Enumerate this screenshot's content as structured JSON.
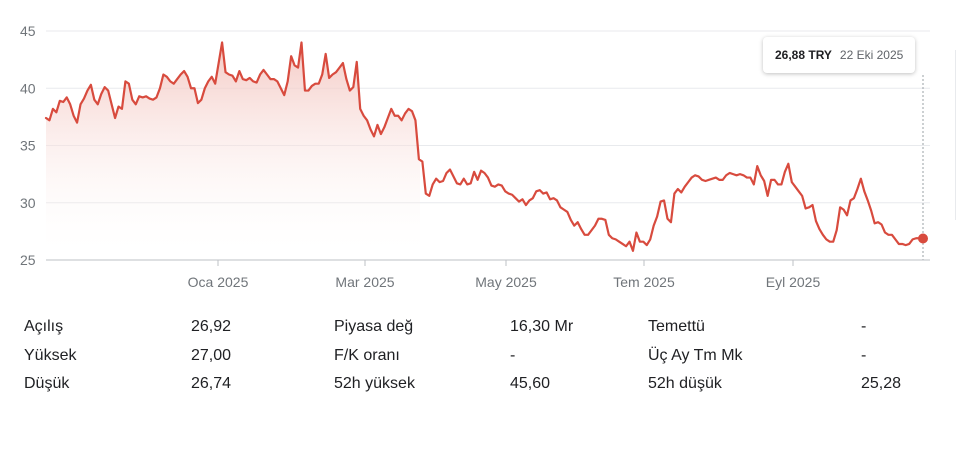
{
  "chart_data": {
    "type": "area",
    "y_ticks": [
      "45",
      "40",
      "35",
      "30",
      "25"
    ],
    "ylim": [
      25,
      45
    ],
    "x_ticks": [
      "Oca 2025",
      "Mar 2025",
      "May 2025",
      "Tem 2025",
      "Eyl 2025"
    ],
    "grid": "horizontal",
    "series": [
      {
        "values": [
          37.4,
          37.2,
          38.2,
          37.9,
          38.9,
          38.8,
          39.2,
          38.6,
          37.6,
          37.0,
          38.6,
          39.1,
          39.8,
          40.3,
          39.0,
          38.6,
          39.5,
          40.1,
          39.8,
          38.6,
          37.4,
          38.4,
          38.2,
          40.6,
          40.4,
          39.0,
          38.6,
          39.3,
          39.2,
          39.3,
          39.1,
          39.0,
          39.2,
          40.0,
          41.2,
          41.0,
          40.6,
          40.4,
          40.8,
          41.2,
          41.5,
          41.0,
          40.0,
          40.0,
          38.7,
          39.0,
          40.0,
          40.6,
          41.0,
          40.4,
          42.2,
          44.0,
          41.4,
          41.2,
          41.1,
          40.6,
          41.5,
          40.8,
          40.7,
          40.9,
          40.6,
          40.5,
          41.2,
          41.6,
          41.2,
          40.8,
          40.8,
          40.6,
          40.0,
          39.4,
          40.6,
          42.8,
          42.0,
          41.8,
          44.0,
          39.8,
          39.8,
          40.2,
          40.4,
          40.4,
          41.2,
          43.0,
          40.9,
          41.2,
          41.4,
          41.8,
          42.2,
          40.8,
          39.8,
          40.1,
          42.3,
          38.2,
          37.6,
          37.2,
          36.4,
          35.8,
          36.8,
          36.0,
          36.6,
          37.4,
          38.2,
          37.6,
          37.6,
          37.2,
          37.8,
          38.2,
          38.0,
          37.2,
          33.8,
          33.6,
          30.8,
          30.6,
          31.6,
          32.1,
          31.8,
          31.9,
          32.6,
          32.9,
          32.3,
          31.7,
          31.6,
          32.1,
          31.6,
          31.7,
          32.7,
          32.0,
          32.8,
          32.6,
          32.2,
          31.5,
          31.4,
          31.6,
          31.5,
          31.0,
          30.8,
          30.7,
          30.4,
          30.1,
          30.3,
          29.8,
          30.2,
          30.4,
          31.0,
          31.1,
          30.8,
          30.9,
          30.3,
          30.4,
          30.2,
          29.6,
          29.4,
          29.2,
          28.5,
          28.0,
          28.3,
          27.7,
          27.2,
          27.2,
          27.6,
          28.0,
          28.6,
          28.6,
          28.5,
          27.2,
          26.9,
          26.8,
          26.6,
          26.4,
          26.2,
          26.6,
          25.8,
          27.4,
          26.6,
          26.6,
          26.3,
          26.8,
          28.0,
          28.8,
          30.1,
          30.2,
          28.6,
          28.3,
          30.8,
          31.2,
          30.9,
          31.4,
          31.8,
          32.2,
          32.4,
          32.3,
          32.0,
          31.9,
          32.0,
          32.1,
          32.2,
          32.0,
          32.0,
          32.4,
          32.6,
          32.5,
          32.4,
          32.5,
          32.4,
          32.2,
          32.2,
          31.6,
          33.2,
          32.4,
          31.9,
          30.6,
          32.0,
          32.0,
          31.6,
          31.6,
          32.7,
          33.4,
          31.8,
          31.4,
          31.0,
          30.6,
          29.5,
          29.6,
          29.8,
          28.4,
          27.7,
          27.2,
          26.8,
          26.6,
          26.6,
          27.6,
          29.6,
          29.4,
          28.9,
          30.2,
          30.4,
          31.2,
          32.1,
          31.0,
          30.2,
          29.3,
          28.2,
          28.3,
          28.1,
          27.4,
          27.2,
          27.2,
          26.8,
          26.4,
          26.4,
          26.3,
          26.4,
          26.8,
          26.9,
          26.9,
          26.88
        ]
      }
    ]
  },
  "tooltip": {
    "price": "26,88 TRY",
    "date": "22 Eki 2025"
  },
  "colors": {
    "line": "#d84b3e",
    "fill_top": "#f3c4be",
    "grid": "#e8eaed"
  },
  "stats": {
    "rows": [
      [
        "Açılış",
        "26,92",
        "Piyasa değ",
        "16,30 Mr",
        "Temettü",
        "-"
      ],
      [
        "Yüksek",
        "27,00",
        "F/K oranı",
        "-",
        "Üç Ay Tm Mk",
        "-"
      ],
      [
        "Düşük",
        "26,74",
        "52h yüksek",
        "45,60",
        "52h düşük",
        "25,28"
      ]
    ]
  }
}
